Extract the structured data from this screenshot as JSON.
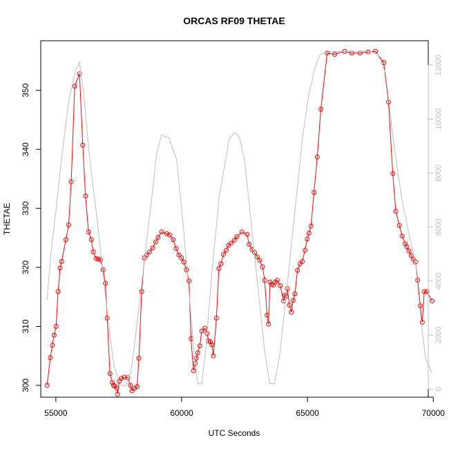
{
  "chart_data": {
    "type": "line",
    "title": "ORCAS RF09 THETAE",
    "xlabel": "UTC Seconds",
    "ylabel": "THETAE",
    "xlim": [
      54400,
      69800
    ],
    "ylim": [
      298.0,
      358.4
    ],
    "y2lim": [
      -300,
      12900
    ],
    "x_ticks": [
      55000,
      60000,
      65000,
      70000
    ],
    "y_ticks": [
      300,
      310,
      320,
      330,
      340,
      350
    ],
    "y2_ticks": [
      0,
      2000,
      4000,
      6000,
      8000,
      10000,
      12000
    ],
    "grid": false,
    "legend": "none",
    "series": [
      {
        "color": "#ff0000",
        "style": "line+open-circles",
        "points": [
          [
            54650,
            300.0
          ],
          [
            54780,
            304.7
          ],
          [
            54860,
            306.8
          ],
          [
            54930,
            308.5
          ],
          [
            55010,
            310.0
          ],
          [
            55090,
            315.9
          ],
          [
            55170,
            319.9
          ],
          [
            55230,
            321.0
          ],
          [
            55400,
            324.7
          ],
          [
            55510,
            327.2
          ],
          [
            55610,
            334.5
          ],
          [
            55750,
            350.7
          ],
          [
            55940,
            352.8
          ],
          [
            56070,
            340.7
          ],
          [
            56180,
            332.1
          ],
          [
            56300,
            326.0
          ],
          [
            56410,
            324.7
          ],
          [
            56490,
            322.6
          ],
          [
            56600,
            321.5
          ],
          [
            56680,
            321.4
          ],
          [
            56770,
            321.3
          ],
          [
            56880,
            319.6
          ],
          [
            56970,
            317.3
          ],
          [
            57040,
            311.4
          ],
          [
            57150,
            302.0
          ],
          [
            57240,
            300.5
          ],
          [
            57290,
            300.0
          ],
          [
            57340,
            299.9
          ],
          [
            57420,
            299.5
          ],
          [
            57450,
            298.5
          ],
          [
            57520,
            300.7
          ],
          [
            57600,
            301.2
          ],
          [
            57720,
            301.4
          ],
          [
            57860,
            301.3
          ],
          [
            57960,
            300.0
          ],
          [
            58030,
            299.1
          ],
          [
            58120,
            299.5
          ],
          [
            58230,
            299.8
          ],
          [
            58300,
            304.6
          ],
          [
            58410,
            315.9
          ],
          [
            58520,
            321.6
          ],
          [
            58610,
            322.1
          ],
          [
            58720,
            322.6
          ],
          [
            58850,
            323.3
          ],
          [
            58970,
            324.3
          ],
          [
            59060,
            325.1
          ],
          [
            59200,
            326.0
          ],
          [
            59410,
            325.7
          ],
          [
            59520,
            325.5
          ],
          [
            59660,
            324.7
          ],
          [
            59780,
            323.2
          ],
          [
            59890,
            322.1
          ],
          [
            59990,
            321.6
          ],
          [
            60080,
            320.9
          ],
          [
            60190,
            319.6
          ],
          [
            60290,
            317.7
          ],
          [
            60370,
            307.9
          ],
          [
            60470,
            302.5
          ],
          [
            60540,
            303.7
          ],
          [
            60580,
            304.6
          ],
          [
            60640,
            305.5
          ],
          [
            60720,
            306.7
          ],
          [
            60800,
            309.2
          ],
          [
            60920,
            309.7
          ],
          [
            61010,
            308.8
          ],
          [
            61070,
            307.5
          ],
          [
            61140,
            307.4
          ],
          [
            61200,
            306.9
          ],
          [
            61260,
            305.0
          ],
          [
            61380,
            311.4
          ],
          [
            61480,
            319.8
          ],
          [
            61560,
            320.6
          ],
          [
            61660,
            322.2
          ],
          [
            61770,
            322.9
          ],
          [
            61860,
            323.7
          ],
          [
            61960,
            324.1
          ],
          [
            62090,
            324.6
          ],
          [
            62200,
            325.2
          ],
          [
            62390,
            326.0
          ],
          [
            62600,
            325.6
          ],
          [
            62680,
            323.9
          ],
          [
            62800,
            323.0
          ],
          [
            62900,
            322.5
          ],
          [
            63000,
            321.8
          ],
          [
            63100,
            321.2
          ],
          [
            63210,
            320.1
          ],
          [
            63300,
            317.8
          ],
          [
            63390,
            311.9
          ],
          [
            63450,
            310.4
          ],
          [
            63510,
            317.5
          ],
          [
            63580,
            317.1
          ],
          [
            63650,
            317.0
          ],
          [
            63720,
            317.5
          ],
          [
            63800,
            317.8
          ],
          [
            63920,
            316.9
          ],
          [
            64050,
            314.3
          ],
          [
            64100,
            315.3
          ],
          [
            64160,
            315.1
          ],
          [
            64200,
            316.4
          ],
          [
            64280,
            313.6
          ],
          [
            64360,
            312.4
          ],
          [
            64430,
            314.4
          ],
          [
            64500,
            315.5
          ],
          [
            64600,
            319.5
          ],
          [
            64700,
            320.6
          ],
          [
            64790,
            321.0
          ],
          [
            64900,
            322.9
          ],
          [
            64990,
            324.8
          ],
          [
            65060,
            325.8
          ],
          [
            65140,
            327.0
          ],
          [
            65260,
            332.7
          ],
          [
            65390,
            338.7
          ],
          [
            65530,
            346.8
          ],
          [
            65780,
            356.3
          ],
          [
            66080,
            356.1
          ],
          [
            66470,
            356.6
          ],
          [
            66760,
            356.3
          ],
          [
            67090,
            356.3
          ],
          [
            67410,
            356.5
          ],
          [
            67700,
            356.6
          ],
          [
            68030,
            354.7
          ],
          [
            68220,
            348.0
          ],
          [
            68390,
            335.9
          ],
          [
            68510,
            329.5
          ],
          [
            68650,
            327.1
          ],
          [
            68760,
            325.3
          ],
          [
            68880,
            324.0
          ],
          [
            68950,
            323.5
          ],
          [
            69030,
            322.8
          ],
          [
            69120,
            322.0
          ],
          [
            69200,
            321.4
          ],
          [
            69290,
            320.9
          ],
          [
            69380,
            317.8
          ],
          [
            69480,
            313.5
          ],
          [
            69560,
            310.7
          ],
          [
            69640,
            315.9
          ],
          [
            69740,
            315.9
          ],
          [
            69950,
            314.3
          ]
        ]
      },
      {
        "color": "#bebebe",
        "style": "line",
        "axis": "right",
        "points": [
          [
            54650,
            3300
          ],
          [
            54800,
            5000
          ],
          [
            55000,
            6600
          ],
          [
            55200,
            8300
          ],
          [
            55500,
            10600
          ],
          [
            55780,
            11800
          ],
          [
            55940,
            12100
          ],
          [
            56100,
            11000
          ],
          [
            56350,
            8500
          ],
          [
            56650,
            6200
          ],
          [
            57000,
            3200
          ],
          [
            57300,
            900
          ],
          [
            57550,
            200
          ],
          [
            57760,
            100
          ],
          [
            58000,
            700
          ],
          [
            58300,
            3000
          ],
          [
            58600,
            5400
          ],
          [
            58850,
            7400
          ],
          [
            59000,
            8700
          ],
          [
            59200,
            9400
          ],
          [
            59500,
            9300
          ],
          [
            59800,
            8500
          ],
          [
            60050,
            6200
          ],
          [
            60300,
            3500
          ],
          [
            60500,
            1300
          ],
          [
            60640,
            200
          ],
          [
            60800,
            200
          ],
          [
            60950,
            1400
          ],
          [
            61200,
            4300
          ],
          [
            61500,
            7200
          ],
          [
            61900,
            9300
          ],
          [
            62130,
            9500
          ],
          [
            62300,
            9300
          ],
          [
            62500,
            8500
          ],
          [
            62800,
            5800
          ],
          [
            63050,
            3600
          ],
          [
            63300,
            1400
          ],
          [
            63500,
            200
          ],
          [
            63690,
            200
          ],
          [
            63900,
            1300
          ],
          [
            64200,
            3900
          ],
          [
            64500,
            6600
          ],
          [
            64800,
            9300
          ],
          [
            65050,
            10900
          ],
          [
            65300,
            11900
          ],
          [
            65500,
            12400
          ],
          [
            65900,
            12500
          ],
          [
            66500,
            12500
          ],
          [
            67000,
            12500
          ],
          [
            67500,
            12500
          ],
          [
            67800,
            12400
          ],
          [
            68100,
            11700
          ],
          [
            68400,
            9300
          ],
          [
            68750,
            7000
          ],
          [
            69000,
            5900
          ],
          [
            69300,
            4600
          ],
          [
            69550,
            2200
          ],
          [
            69700,
            1100
          ],
          [
            69850,
            800
          ],
          [
            69950,
            600
          ]
        ]
      }
    ]
  }
}
